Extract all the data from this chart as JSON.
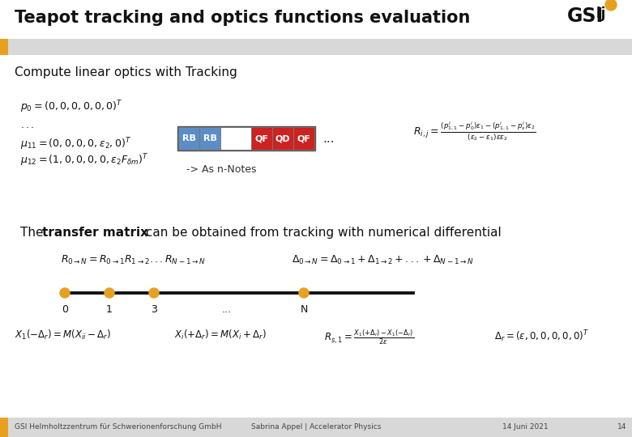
{
  "title": "Teapot tracking and optics functions evaluation",
  "white_bg": "#ffffff",
  "orange_accent": "#e8a020",
  "title_fontsize": 15,
  "section1_title": "Compute linear optics with Tracking",
  "as_n_notes": "-> As n-Notes",
  "footer_left": "GSI Helmholtzzentrum für Schwerionenforschung GmbH",
  "footer_center": "Sabrina Appel | Accelerator Physics",
  "footer_right": "14 Juni 2021",
  "footer_page": "14",
  "color_rb": "#5b8ec4",
  "color_qf_qd": "#cc2222",
  "color_white_box": "#ffffff",
  "color_dot": "#e8a020",
  "color_gray_bar": "#d8d8d8",
  "color_text": "#111111",
  "color_footer_text": "#444444"
}
